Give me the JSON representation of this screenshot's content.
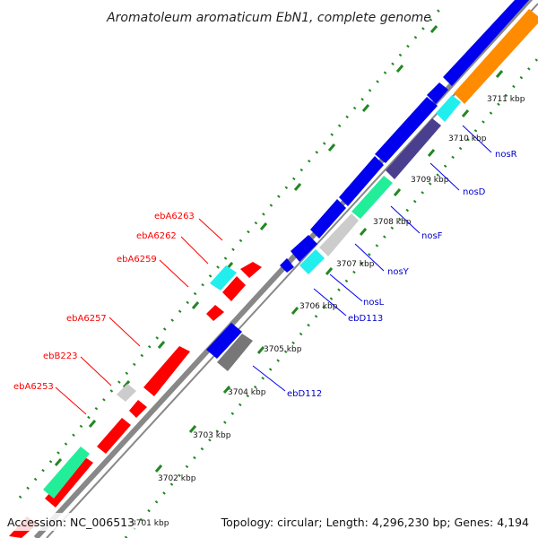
{
  "title": "Aromatoleum aromaticum EbN1, complete genome",
  "footer": {
    "accession": "Accession: NC_006513",
    "topology": "Topology: circular; Length: 4,296,230 bp; Genes: 4,194"
  },
  "ticks": [
    "3701 kbp",
    "3702 kbp",
    "3703 kbp",
    "3704 kbp",
    "3705 kbp",
    "3706 kbp",
    "3707 kbp",
    "3708 kbp",
    "3709 kbp",
    "3710 kbp",
    "3711 kbp"
  ],
  "gene_labels": {
    "red": [
      "ebA6263",
      "ebA6262",
      "ebA6259",
      "ebA6257",
      "ebB223",
      "ebA6253"
    ],
    "blue": [
      "nosR",
      "nosD",
      "nosF",
      "nosY",
      "nosL",
      "ebD113",
      "ebD112"
    ]
  },
  "colors": {
    "forward": "#0000ee",
    "reverse": "#ff0000",
    "cyan": "#22eeee",
    "green": "#22ee99",
    "slate": "#4a3f8f",
    "orange": "#ff8c00",
    "grey": "#777777",
    "lightgrey": "#cccccc",
    "dots": "#228822",
    "backbone": "#888888"
  }
}
